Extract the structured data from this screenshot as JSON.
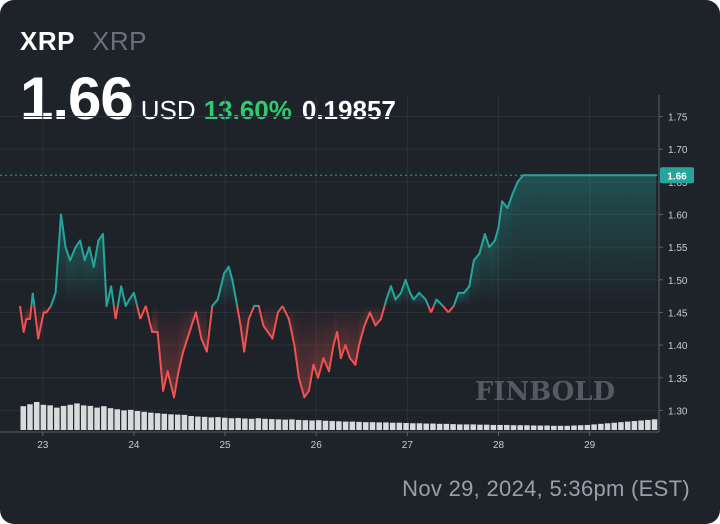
{
  "header": {
    "ticker": "XRP",
    "ticker_secondary": "XRP",
    "price": "1.66",
    "currency": "USD",
    "change_percent": "13.60%",
    "change_value": "0.19857"
  },
  "footer": {
    "timestamp": "Nov 29, 2024, 5:36pm (EST)"
  },
  "watermark": "FINBOLD",
  "colors": {
    "background": "#1e2229",
    "up": "#26a69a",
    "down": "#ef5350",
    "positive_text": "#2ecc71",
    "axis_text": "#c9ccd1",
    "volume": "#d9dadc"
  },
  "chart_data": {
    "type": "line",
    "title": "",
    "xlabel": "",
    "ylabel": "",
    "ylim": [
      1.27,
      1.76
    ],
    "y_ticks": [
      1.3,
      1.35,
      1.4,
      1.45,
      1.5,
      1.55,
      1.6,
      1.65,
      1.7,
      1.75
    ],
    "x_tick_labels": [
      "23",
      "24",
      "25",
      "26",
      "27",
      "28",
      "29"
    ],
    "x_tick_positions": [
      22.85,
      23.85,
      24.85,
      25.85,
      26.85,
      27.85,
      28.85
    ],
    "x_range": [
      22.6,
      29.6
    ],
    "last_price": 1.66,
    "last_price_label": "1.66",
    "series": [
      {
        "x": [
          22.6,
          22.64,
          22.67,
          22.71,
          22.74,
          22.8,
          22.86,
          22.89,
          22.94,
          22.99,
          23.05,
          23.1,
          23.15,
          23.21,
          23.26,
          23.31,
          23.36,
          23.41,
          23.46,
          23.51,
          23.55,
          23.6,
          23.65,
          23.71,
          23.76,
          23.8,
          23.85,
          23.92,
          23.98,
          24.05,
          24.11,
          24.17,
          24.22,
          24.29,
          24.34,
          24.39,
          24.46,
          24.53,
          24.59,
          24.65,
          24.71,
          24.77,
          24.84,
          24.89,
          24.93,
          24.97,
          25.02,
          25.06,
          25.11,
          25.17,
          25.22,
          25.27,
          25.32,
          25.37,
          25.43,
          25.48,
          25.55,
          25.61,
          25.66,
          25.72,
          25.77,
          25.82,
          25.87,
          25.93,
          25.99,
          26.04,
          26.08,
          26.12,
          26.17,
          26.22,
          26.28,
          26.32,
          26.38,
          26.44,
          26.5,
          26.56,
          26.62,
          26.67,
          26.72,
          26.78,
          26.83,
          26.88,
          26.92,
          26.98,
          27.05,
          27.11,
          27.17,
          27.24,
          27.3,
          27.36,
          27.41,
          27.47,
          27.53,
          27.58,
          27.64,
          27.7,
          27.75,
          27.81,
          27.85,
          27.89,
          27.95,
          28.0,
          28.06,
          28.12,
          28.18,
          28.22,
          28.28,
          28.33,
          28.38,
          28.44,
          28.5,
          28.55,
          28.61,
          28.67,
          28.72,
          28.77,
          28.83,
          28.89,
          28.95,
          29.0,
          29.05,
          29.09,
          29.14,
          29.2,
          29.25,
          29.3,
          29.36,
          29.42,
          29.48,
          29.53,
          29.58
        ],
        "y": [
          1.46,
          1.42,
          1.44,
          1.44,
          1.48,
          1.41,
          1.45,
          1.45,
          1.46,
          1.48,
          1.6,
          1.55,
          1.53,
          1.55,
          1.56,
          1.53,
          1.55,
          1.52,
          1.56,
          1.57,
          1.46,
          1.49,
          1.44,
          1.49,
          1.46,
          1.47,
          1.48,
          1.44,
          1.46,
          1.42,
          1.42,
          1.33,
          1.36,
          1.32,
          1.36,
          1.39,
          1.42,
          1.45,
          1.41,
          1.39,
          1.46,
          1.47,
          1.51,
          1.52,
          1.5,
          1.47,
          1.43,
          1.39,
          1.44,
          1.46,
          1.46,
          1.43,
          1.42,
          1.41,
          1.45,
          1.46,
          1.44,
          1.4,
          1.35,
          1.32,
          1.33,
          1.37,
          1.35,
          1.38,
          1.36,
          1.4,
          1.42,
          1.38,
          1.4,
          1.38,
          1.37,
          1.4,
          1.43,
          1.45,
          1.43,
          1.44,
          1.47,
          1.49,
          1.47,
          1.48,
          1.5,
          1.48,
          1.47,
          1.48,
          1.47,
          1.45,
          1.47,
          1.46,
          1.45,
          1.46,
          1.48,
          1.48,
          1.49,
          1.53,
          1.54,
          1.57,
          1.55,
          1.56,
          1.58,
          1.62,
          1.61,
          1.63,
          1.65,
          1.66,
          1.66,
          1.66,
          1.66,
          1.66,
          1.66,
          1.66,
          1.66,
          1.66,
          1.66,
          1.66,
          1.66,
          1.66,
          1.66,
          1.66,
          1.66,
          1.66,
          1.66,
          1.66,
          1.66,
          1.66,
          1.66,
          1.66,
          1.66,
          1.66,
          1.66,
          1.66,
          1.66
        ]
      }
    ],
    "volume": [
      0.85,
      0.92,
      1.0,
      0.9,
      0.88,
      0.8,
      0.86,
      0.9,
      0.95,
      0.88,
      0.86,
      0.8,
      0.85,
      0.78,
      0.74,
      0.7,
      0.72,
      0.68,
      0.65,
      0.62,
      0.6,
      0.58,
      0.56,
      0.55,
      0.54,
      0.5,
      0.48,
      0.47,
      0.45,
      0.46,
      0.44,
      0.42,
      0.43,
      0.41,
      0.4,
      0.42,
      0.4,
      0.39,
      0.38,
      0.37,
      0.38,
      0.36,
      0.35,
      0.34,
      0.35,
      0.33,
      0.32,
      0.31,
      0.3,
      0.3,
      0.29,
      0.28,
      0.28,
      0.27,
      0.27,
      0.26,
      0.26,
      0.25,
      0.24,
      0.24,
      0.23,
      0.23,
      0.22,
      0.22,
      0.21,
      0.2,
      0.2,
      0.2,
      0.19,
      0.19,
      0.18,
      0.18,
      0.18,
      0.17,
      0.17,
      0.17,
      0.16,
      0.16,
      0.16,
      0.15,
      0.15,
      0.15,
      0.16,
      0.17,
      0.18,
      0.2,
      0.22,
      0.24,
      0.26,
      0.28,
      0.3,
      0.32,
      0.34,
      0.36,
      0.38
    ]
  }
}
